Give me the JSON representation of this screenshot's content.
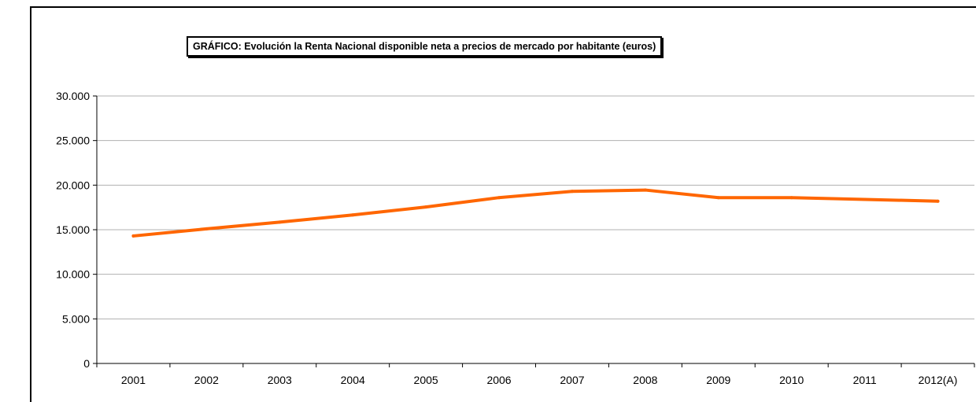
{
  "chart_data": {
    "type": "line",
    "title": "GRÁFICO: Evolución la Renta Nacional disponible neta a precios de mercado por habitante (euros)",
    "xlabel": "",
    "ylabel": "",
    "categories": [
      "2001",
      "2002",
      "2003",
      "2004",
      "2005",
      "2006",
      "2007",
      "2008",
      "2009",
      "2010",
      "2011",
      "2012(A)"
    ],
    "series": [
      {
        "values": [
          14300,
          15100,
          15850,
          16650,
          17550,
          18600,
          19300,
          19450,
          18600,
          18600,
          18400,
          18200
        ],
        "color": "#ff6600"
      }
    ],
    "ylim": [
      0,
      30000
    ],
    "yticks": [
      0,
      5000,
      10000,
      15000,
      20000,
      25000,
      30000
    ],
    "ytick_labels": [
      "0",
      "5.000",
      "10.000",
      "15.000",
      "20.000",
      "25.000",
      "30.000"
    ],
    "grid": true,
    "legend": "none"
  }
}
